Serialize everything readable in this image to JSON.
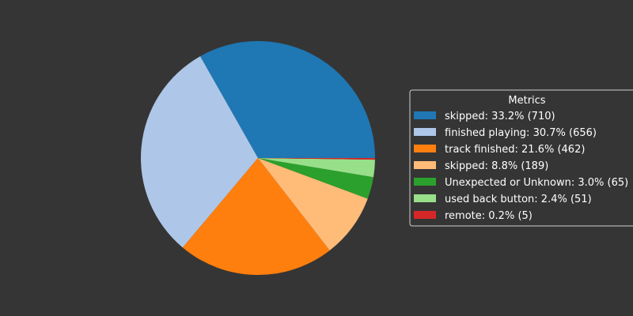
{
  "chart_data": {
    "type": "pie",
    "legend_title": "Metrics",
    "legend_position": "center-right",
    "slices": [
      {
        "label": "skipped: 33.2% (710)",
        "value": 710,
        "color": "#1f77b4"
      },
      {
        "label": "finished playing: 30.7% (656)",
        "value": 656,
        "color": "#aec7e8"
      },
      {
        "label": "track finished: 21.6% (462)",
        "value": 462,
        "color": "#ff7f0e"
      },
      {
        "label": "skipped: 8.8% (189)",
        "value": 189,
        "color": "#ffbb78"
      },
      {
        "label": "Unexpected or Unknown: 3.0% (65)",
        "value": 65,
        "color": "#2ca02c"
      },
      {
        "label": "used back button: 2.4% (51)",
        "value": 51,
        "color": "#98df8a"
      },
      {
        "label": "remote: 0.2% (5)",
        "value": 5,
        "color": "#d62728"
      }
    ]
  },
  "colors": {
    "background": "#353535",
    "legend_border": "#d0d0d0",
    "text": "#ffffff"
  }
}
